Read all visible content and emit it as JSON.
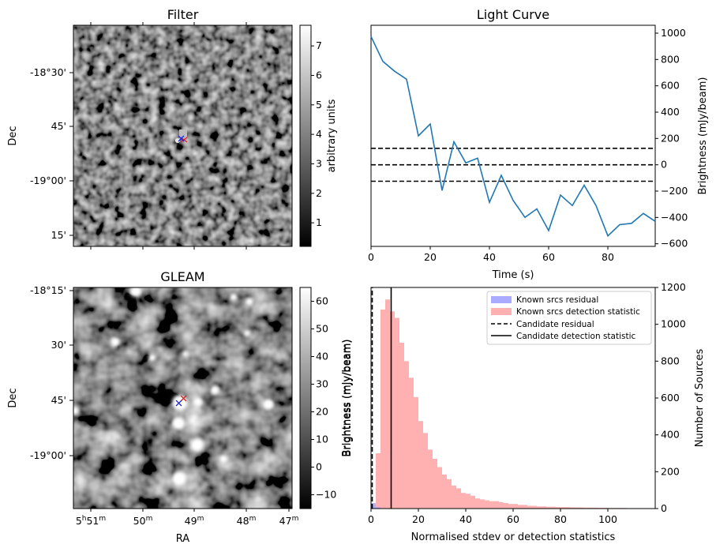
{
  "chart_data": [
    {
      "type": "heatmap",
      "title": "Filter",
      "ylabel": "Dec",
      "colorbar_label": "arbitrary units",
      "colorbar_range": [
        0.2,
        7.7
      ],
      "colorbar_ticks": [
        "1",
        "2",
        "3",
        "4",
        "5",
        "6",
        "7"
      ],
      "y_tick_labels": [
        "-18°30'",
        "45'",
        "-19°00'",
        "15'"
      ],
      "grayscale": true
    },
    {
      "type": "line",
      "title": "Light Curve",
      "xlabel": "Time (s)",
      "ylabel": "Brightness (mJy/beam)",
      "xlim": [
        0,
        96
      ],
      "ylim": [
        -620,
        1060
      ],
      "x_ticks": [
        0,
        20,
        40,
        60,
        80
      ],
      "y_ticks": [
        -600,
        -400,
        -200,
        0,
        200,
        400,
        600,
        800,
        1000
      ],
      "x": [
        0,
        4,
        8,
        12,
        16,
        20,
        24,
        28,
        32,
        36,
        40,
        44,
        48,
        52,
        56,
        60,
        64,
        68,
        72,
        76,
        80,
        84,
        88,
        92,
        96
      ],
      "series": [
        {
          "values": [
            975,
            785,
            710,
            650,
            220,
            310,
            -195,
            175,
            15,
            50,
            -285,
            -80,
            -270,
            -400,
            -335,
            -500,
            -230,
            -310,
            -155,
            -310,
            -540,
            -455,
            -445,
            -370,
            -430
          ],
          "color": "#1f77b4"
        }
      ],
      "hlines": [
        {
          "y": 125,
          "style": "dashed"
        },
        {
          "y": 0,
          "style": "dashed"
        },
        {
          "y": -125,
          "style": "dashed"
        }
      ]
    },
    {
      "type": "heatmap",
      "title": "GLEAM",
      "xlabel": "RA",
      "ylabel": "Dec",
      "colorbar_label": "Brightness (mJy/beam)",
      "colorbar_range": [
        -15,
        65
      ],
      "colorbar_ticks": [
        "−10",
        "0",
        "10",
        "20",
        "30",
        "40",
        "50",
        "60"
      ],
      "y_tick_labels": [
        "-18°15'",
        "30'",
        "45'",
        "-19°00'"
      ],
      "x_tick_labels": [
        {
          "h": "5",
          "hs": "h",
          "m": "51",
          "ms": "m"
        },
        {
          "m": "50",
          "ms": "m"
        },
        {
          "m": "49",
          "ms": "m"
        },
        {
          "m": "48",
          "ms": "m"
        },
        {
          "m": "47",
          "ms": "m"
        }
      ],
      "grayscale": true
    },
    {
      "type": "bar",
      "xlabel": "Normalised stdev or detection statistics",
      "ylabel_left": "Brightness (mJy/beam)",
      "ylabel_right": "Number of Sources",
      "xlim": [
        0,
        120
      ],
      "ylim": [
        0,
        1200
      ],
      "x_ticks": [
        0,
        20,
        40,
        60,
        80,
        100
      ],
      "y_ticks": [
        0,
        200,
        400,
        600,
        800,
        1000,
        1200
      ],
      "bin_width": 2,
      "series": [
        {
          "name": "Known srcs residual",
          "color": "#aaaaff",
          "bin_start": 0,
          "values": [
            30,
            8,
            0
          ]
        },
        {
          "name": "Known srcs detection statistic",
          "color": "#ffb0b0",
          "bin_start": 0,
          "values": [
            20,
            300,
            1080,
            1135,
            1070,
            1035,
            900,
            800,
            710,
            605,
            475,
            410,
            320,
            270,
            225,
            185,
            160,
            125,
            110,
            85,
            80,
            70,
            55,
            50,
            45,
            40,
            40,
            35,
            30,
            25,
            25,
            20,
            20,
            15,
            15,
            12,
            12,
            10,
            10,
            8,
            8,
            8,
            7,
            6,
            6,
            5,
            5,
            5,
            4,
            4,
            3,
            3,
            3,
            3,
            2,
            2,
            2,
            2,
            1,
            1
          ]
        }
      ],
      "vlines": [
        {
          "name": "Candidate residual",
          "x": 0.5,
          "style": "dashed"
        },
        {
          "name": "Candidate detection statistic",
          "x": 8.5,
          "style": "solid"
        }
      ]
    }
  ]
}
